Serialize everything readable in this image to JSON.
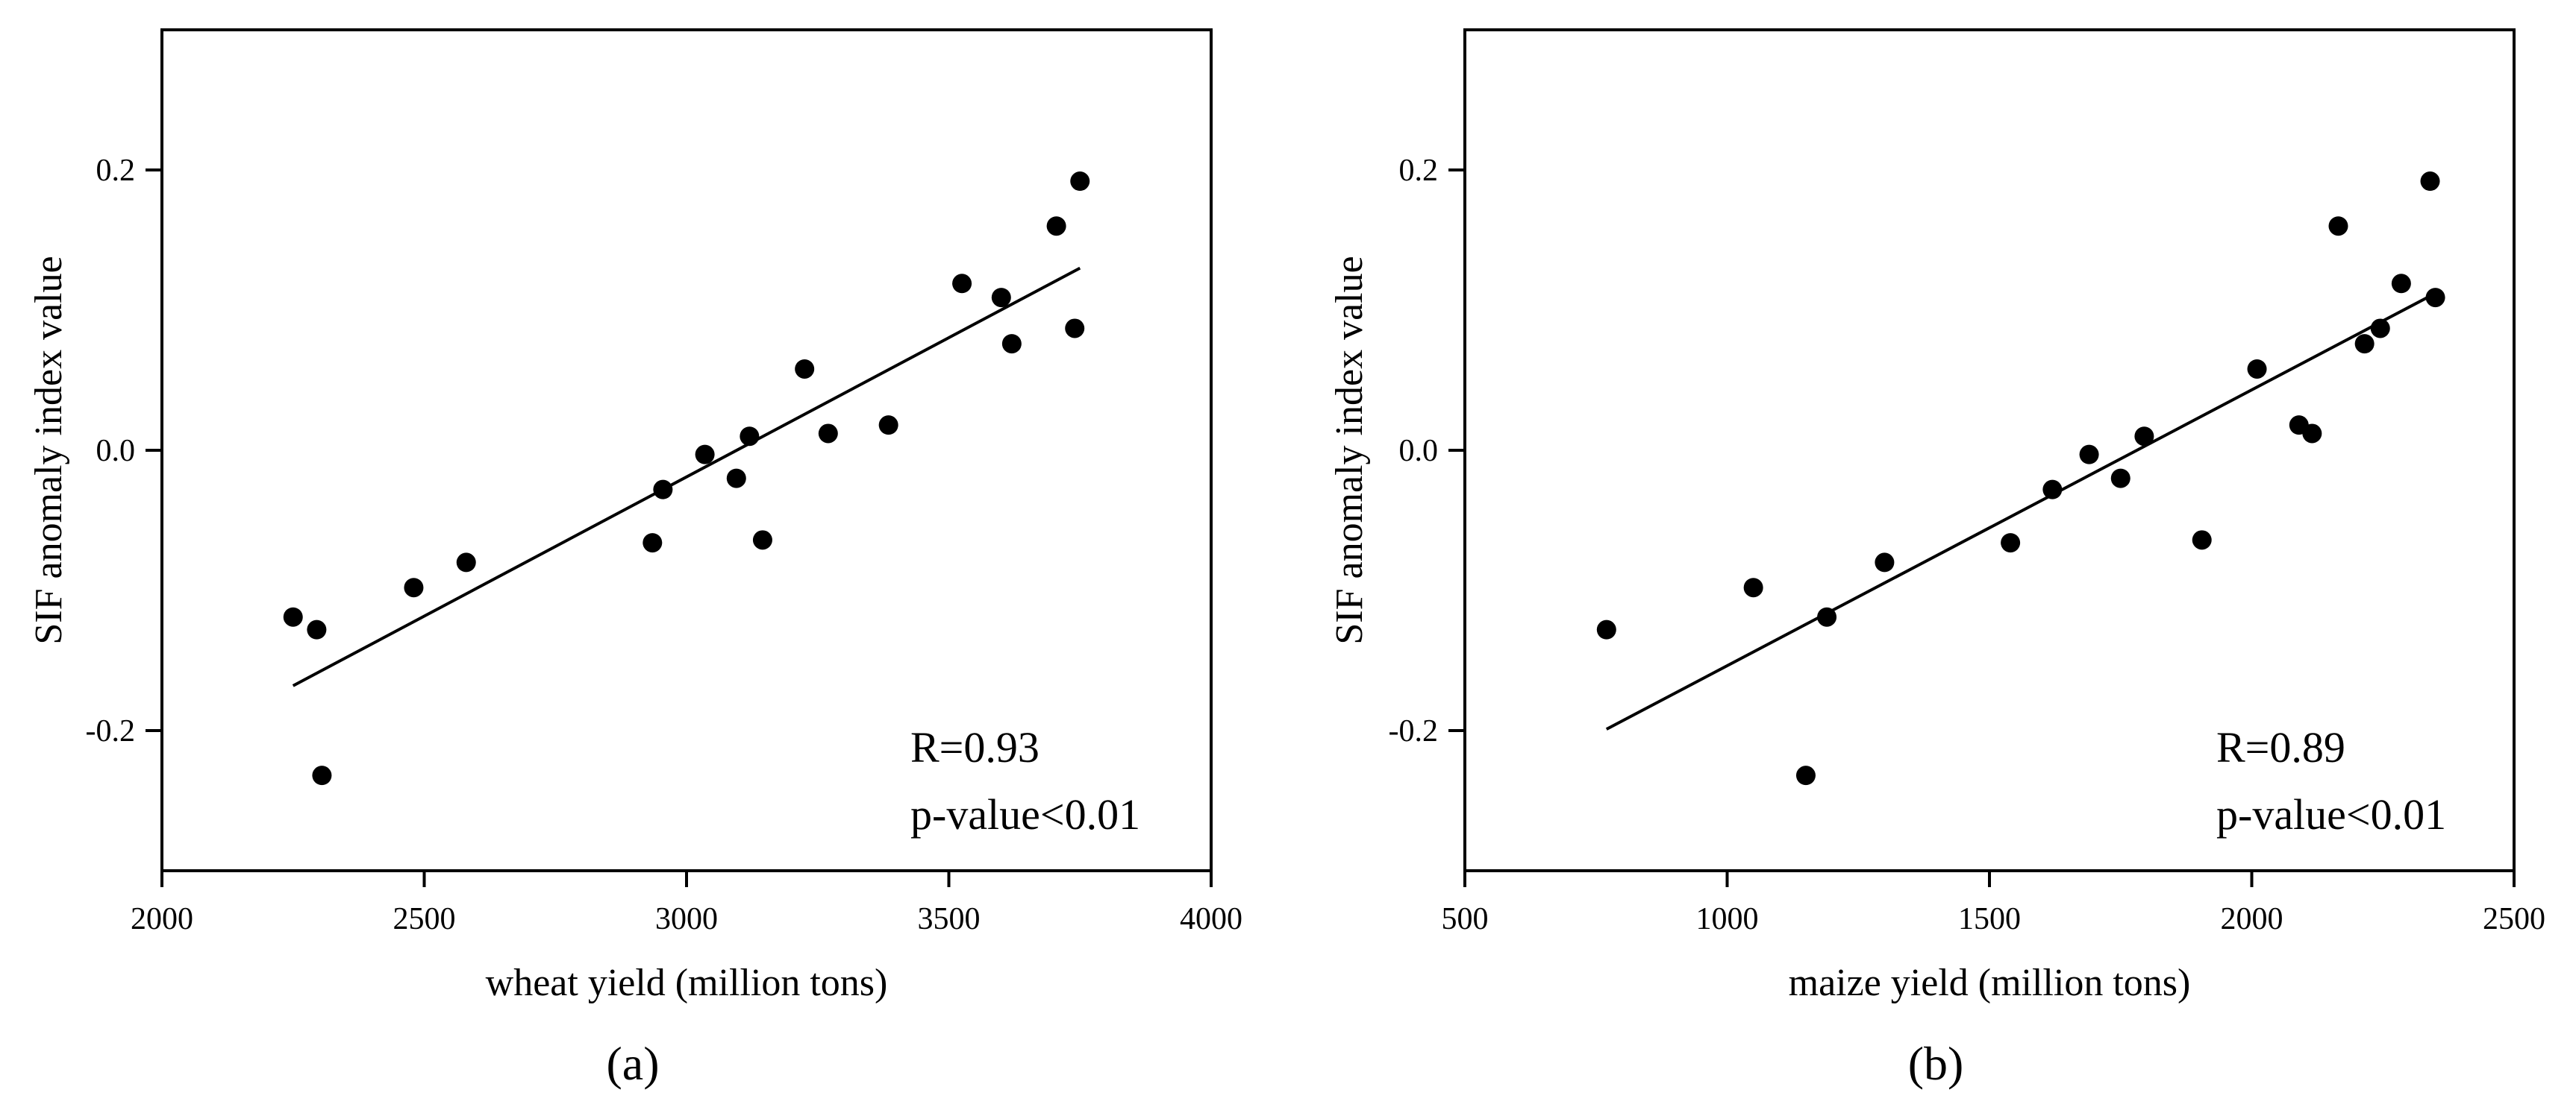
{
  "figure": {
    "panel_labels": [
      "(a)",
      "(b)"
    ]
  },
  "chart_data": [
    {
      "type": "scatter",
      "panel": "(a)",
      "xlabel": "wheat yield (million tons)",
      "ylabel": "SIF anomaly index value",
      "xlim": [
        2000,
        4000
      ],
      "ylim": [
        -0.3,
        0.3
      ],
      "xticks": [
        2000,
        2500,
        3000,
        3500,
        4000
      ],
      "xtick_labels": [
        "2000",
        "2500",
        "3000",
        "3500",
        "4000"
      ],
      "yticks": [
        -0.2,
        0.0,
        0.2
      ],
      "ytick_labels": [
        "-0.2",
        "0.0",
        "0.2"
      ],
      "points": [
        {
          "x": 2250,
          "y": -0.119
        },
        {
          "x": 2295,
          "y": -0.128
        },
        {
          "x": 2305,
          "y": -0.232
        },
        {
          "x": 2480,
          "y": -0.098
        },
        {
          "x": 2580,
          "y": -0.08
        },
        {
          "x": 2935,
          "y": -0.066
        },
        {
          "x": 2955,
          "y": -0.028
        },
        {
          "x": 3035,
          "y": -0.003
        },
        {
          "x": 3095,
          "y": -0.02
        },
        {
          "x": 3120,
          "y": 0.01
        },
        {
          "x": 3145,
          "y": -0.064
        },
        {
          "x": 3225,
          "y": 0.058
        },
        {
          "x": 3270,
          "y": 0.012
        },
        {
          "x": 3385,
          "y": 0.018
        },
        {
          "x": 3525,
          "y": 0.119
        },
        {
          "x": 3600,
          "y": 0.109
        },
        {
          "x": 3620,
          "y": 0.076
        },
        {
          "x": 3705,
          "y": 0.16
        },
        {
          "x": 3740,
          "y": 0.087
        },
        {
          "x": 3750,
          "y": 0.192
        }
      ],
      "fit_line": {
        "x": [
          2250,
          3750
        ],
        "y": [
          -0.168,
          0.13
        ]
      },
      "annotations": [
        "R=0.93",
        "p-value<0.01"
      ],
      "annotation_position": "bottom-right",
      "colors": {
        "marker": "#000000",
        "line": "#000000",
        "axes": "#000000"
      }
    },
    {
      "type": "scatter",
      "panel": "(b)",
      "xlabel": "maize yield (million tons)",
      "ylabel": "SIF anomaly index value",
      "xlim": [
        500,
        2500
      ],
      "ylim": [
        -0.3,
        0.3
      ],
      "xticks": [
        500,
        1000,
        1500,
        2000,
        2500
      ],
      "xtick_labels": [
        "500",
        "1000",
        "1500",
        "2000",
        "2500"
      ],
      "yticks": [
        -0.2,
        0.0,
        0.2
      ],
      "ytick_labels": [
        "-0.2",
        "0.0",
        "0.2"
      ],
      "points": [
        {
          "x": 770,
          "y": -0.128
        },
        {
          "x": 1050,
          "y": -0.098
        },
        {
          "x": 1150,
          "y": -0.232
        },
        {
          "x": 1190,
          "y": -0.119
        },
        {
          "x": 1300,
          "y": -0.08
        },
        {
          "x": 1540,
          "y": -0.066
        },
        {
          "x": 1620,
          "y": -0.028
        },
        {
          "x": 1690,
          "y": -0.003
        },
        {
          "x": 1750,
          "y": -0.02
        },
        {
          "x": 1795,
          "y": 0.01
        },
        {
          "x": 1905,
          "y": -0.064
        },
        {
          "x": 2010,
          "y": 0.058
        },
        {
          "x": 2090,
          "y": 0.018
        },
        {
          "x": 2115,
          "y": 0.012
        },
        {
          "x": 2165,
          "y": 0.16
        },
        {
          "x": 2215,
          "y": 0.076
        },
        {
          "x": 2245,
          "y": 0.087
        },
        {
          "x": 2285,
          "y": 0.119
        },
        {
          "x": 2340,
          "y": 0.192
        },
        {
          "x": 2350,
          "y": 0.109
        }
      ],
      "fit_line": {
        "x": [
          770,
          2350
        ],
        "y": [
          -0.199,
          0.112
        ]
      },
      "annotations": [
        "R=0.89",
        "p-value<0.01"
      ],
      "annotation_position": "bottom-right",
      "colors": {
        "marker": "#000000",
        "line": "#000000",
        "axes": "#000000"
      }
    }
  ]
}
